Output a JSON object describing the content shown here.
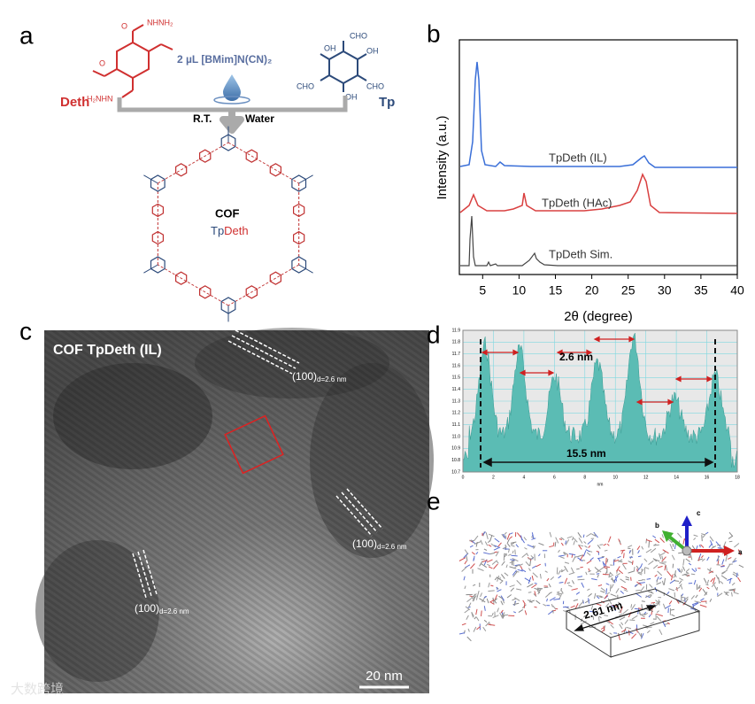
{
  "panels": {
    "a": {
      "label": "a",
      "reactant1": "Deth",
      "reactant2": "Tp",
      "solvent": "2 µL [BMim]N(CN)₂",
      "condition1": "R.T.",
      "condition2": "Water",
      "product": "COF",
      "product_name": [
        "Tp",
        "Deth"
      ],
      "deth_groups": [
        "NHNH₂",
        "H₂NHN",
        "O",
        "O"
      ],
      "tp_groups": [
        "CHO",
        "CHO",
        "CHO",
        "OH",
        "OH",
        "OH"
      ]
    },
    "b": {
      "label": "b",
      "xlabel": "2θ (degree)",
      "ylabel": "Intensity (a.u.)",
      "xlim": [
        1.8,
        40
      ],
      "xticks": [
        5,
        10,
        15,
        20,
        25,
        30,
        35,
        40
      ],
      "curves": [
        "TpDeth (IL)",
        "TpDeth (HAc)",
        "TpDeth Sim."
      ]
    },
    "c": {
      "label": "c",
      "title": "COF TpDeth (IL)",
      "fringe_labels": [
        {
          "main": "(100)",
          "sub": "d=2.6 nm"
        },
        {
          "main": "(100)",
          "sub": "d=2.6 nm"
        },
        {
          "main": "(100)",
          "sub": "d=2.6 nm"
        }
      ],
      "scale_bar": "20 nm"
    },
    "d": {
      "label": "d",
      "xlim": [
        0,
        18
      ],
      "xticks": [
        0,
        2,
        4,
        6,
        8,
        10,
        12,
        14,
        16,
        18
      ],
      "xlabel": "nm",
      "ylim": [
        10.7,
        11.9
      ],
      "yticks": [
        10.7,
        10.8,
        10.9,
        {
          "value": 11,
          "label": "11.0"
        },
        11.1,
        11.2,
        11.3,
        11.4,
        11.5,
        11.6,
        11.7,
        11.8,
        11.9
      ],
      "spacing_label": "2.6 nm",
      "span_label": "15.5 nm"
    },
    "e": {
      "label": "e",
      "axes": [
        "a",
        "b",
        "c"
      ],
      "distance_label": "2.61 nm"
    },
    "watermark": "大数跨境"
  }
}
